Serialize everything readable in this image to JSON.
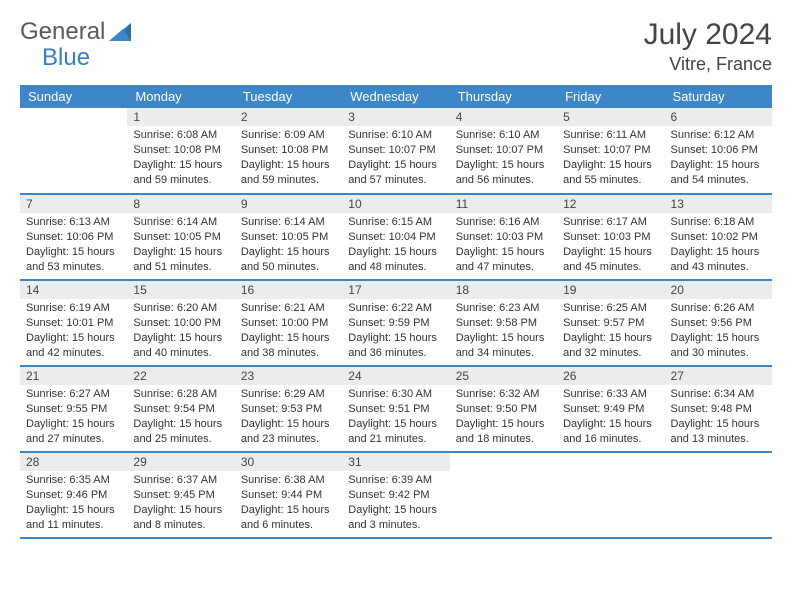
{
  "brand": {
    "text1": "General",
    "text2": "Blue"
  },
  "title": {
    "month": "July 2024",
    "location": "Vitre, France"
  },
  "dayHeaders": [
    "Sunday",
    "Monday",
    "Tuesday",
    "Wednesday",
    "Thursday",
    "Friday",
    "Saturday"
  ],
  "colors": {
    "headerBg": "#3d87c8",
    "dayNumBg": "#ebeced",
    "rowBorder": "#3d87c8",
    "logoGray": "#5a5a5a",
    "logoBlue": "#3a7dc0",
    "text": "#333333"
  },
  "weeks": [
    [
      null,
      {
        "n": "1",
        "sr": "6:08 AM",
        "ss": "10:08 PM",
        "dl": "15 hours and 59 minutes."
      },
      {
        "n": "2",
        "sr": "6:09 AM",
        "ss": "10:08 PM",
        "dl": "15 hours and 59 minutes."
      },
      {
        "n": "3",
        "sr": "6:10 AM",
        "ss": "10:07 PM",
        "dl": "15 hours and 57 minutes."
      },
      {
        "n": "4",
        "sr": "6:10 AM",
        "ss": "10:07 PM",
        "dl": "15 hours and 56 minutes."
      },
      {
        "n": "5",
        "sr": "6:11 AM",
        "ss": "10:07 PM",
        "dl": "15 hours and 55 minutes."
      },
      {
        "n": "6",
        "sr": "6:12 AM",
        "ss": "10:06 PM",
        "dl": "15 hours and 54 minutes."
      }
    ],
    [
      {
        "n": "7",
        "sr": "6:13 AM",
        "ss": "10:06 PM",
        "dl": "15 hours and 53 minutes."
      },
      {
        "n": "8",
        "sr": "6:14 AM",
        "ss": "10:05 PM",
        "dl": "15 hours and 51 minutes."
      },
      {
        "n": "9",
        "sr": "6:14 AM",
        "ss": "10:05 PM",
        "dl": "15 hours and 50 minutes."
      },
      {
        "n": "10",
        "sr": "6:15 AM",
        "ss": "10:04 PM",
        "dl": "15 hours and 48 minutes."
      },
      {
        "n": "11",
        "sr": "6:16 AM",
        "ss": "10:03 PM",
        "dl": "15 hours and 47 minutes."
      },
      {
        "n": "12",
        "sr": "6:17 AM",
        "ss": "10:03 PM",
        "dl": "15 hours and 45 minutes."
      },
      {
        "n": "13",
        "sr": "6:18 AM",
        "ss": "10:02 PM",
        "dl": "15 hours and 43 minutes."
      }
    ],
    [
      {
        "n": "14",
        "sr": "6:19 AM",
        "ss": "10:01 PM",
        "dl": "15 hours and 42 minutes."
      },
      {
        "n": "15",
        "sr": "6:20 AM",
        "ss": "10:00 PM",
        "dl": "15 hours and 40 minutes."
      },
      {
        "n": "16",
        "sr": "6:21 AM",
        "ss": "10:00 PM",
        "dl": "15 hours and 38 minutes."
      },
      {
        "n": "17",
        "sr": "6:22 AM",
        "ss": "9:59 PM",
        "dl": "15 hours and 36 minutes."
      },
      {
        "n": "18",
        "sr": "6:23 AM",
        "ss": "9:58 PM",
        "dl": "15 hours and 34 minutes."
      },
      {
        "n": "19",
        "sr": "6:25 AM",
        "ss": "9:57 PM",
        "dl": "15 hours and 32 minutes."
      },
      {
        "n": "20",
        "sr": "6:26 AM",
        "ss": "9:56 PM",
        "dl": "15 hours and 30 minutes."
      }
    ],
    [
      {
        "n": "21",
        "sr": "6:27 AM",
        "ss": "9:55 PM",
        "dl": "15 hours and 27 minutes."
      },
      {
        "n": "22",
        "sr": "6:28 AM",
        "ss": "9:54 PM",
        "dl": "15 hours and 25 minutes."
      },
      {
        "n": "23",
        "sr": "6:29 AM",
        "ss": "9:53 PM",
        "dl": "15 hours and 23 minutes."
      },
      {
        "n": "24",
        "sr": "6:30 AM",
        "ss": "9:51 PM",
        "dl": "15 hours and 21 minutes."
      },
      {
        "n": "25",
        "sr": "6:32 AM",
        "ss": "9:50 PM",
        "dl": "15 hours and 18 minutes."
      },
      {
        "n": "26",
        "sr": "6:33 AM",
        "ss": "9:49 PM",
        "dl": "15 hours and 16 minutes."
      },
      {
        "n": "27",
        "sr": "6:34 AM",
        "ss": "9:48 PM",
        "dl": "15 hours and 13 minutes."
      }
    ],
    [
      {
        "n": "28",
        "sr": "6:35 AM",
        "ss": "9:46 PM",
        "dl": "15 hours and 11 minutes."
      },
      {
        "n": "29",
        "sr": "6:37 AM",
        "ss": "9:45 PM",
        "dl": "15 hours and 8 minutes."
      },
      {
        "n": "30",
        "sr": "6:38 AM",
        "ss": "9:44 PM",
        "dl": "15 hours and 6 minutes."
      },
      {
        "n": "31",
        "sr": "6:39 AM",
        "ss": "9:42 PM",
        "dl": "15 hours and 3 minutes."
      },
      null,
      null,
      null
    ]
  ],
  "labels": {
    "sunrise": "Sunrise:",
    "sunset": "Sunset:",
    "daylight": "Daylight:"
  }
}
